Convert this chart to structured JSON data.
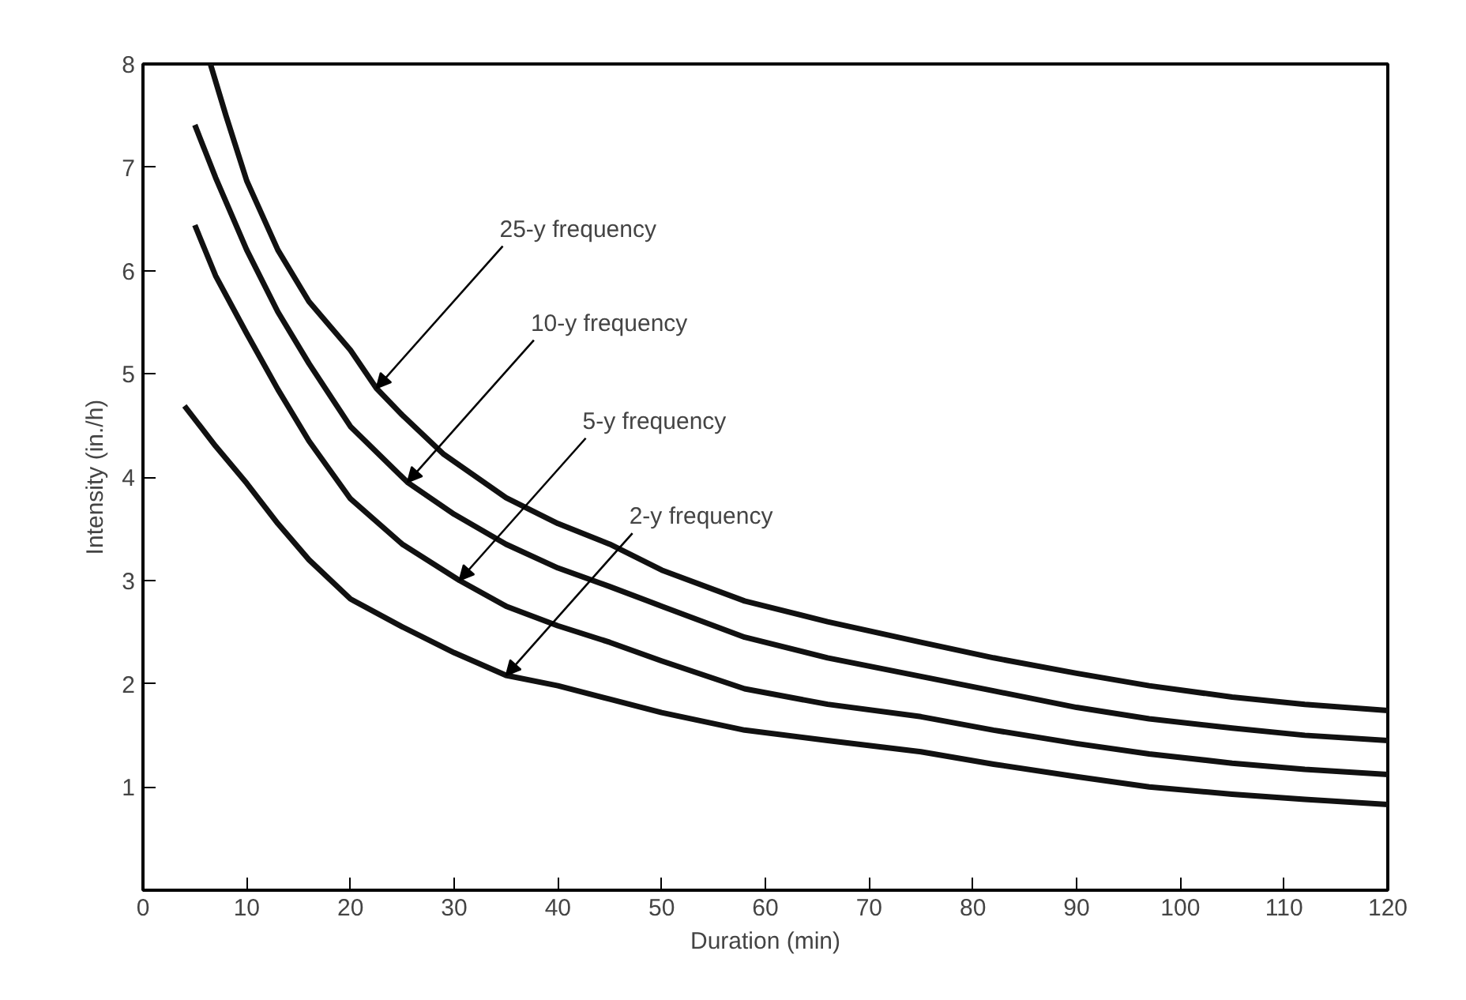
{
  "chart_data": {
    "type": "line",
    "xlabel": "Duration (min)",
    "ylabel": "Intensity (in./h)",
    "xlim": [
      0,
      120
    ],
    "ylim": [
      0,
      8
    ],
    "xticks": [
      0,
      10,
      20,
      30,
      40,
      50,
      60,
      70,
      80,
      90,
      100,
      110,
      120
    ],
    "yticks": [
      1,
      2,
      3,
      4,
      5,
      6,
      7,
      8
    ],
    "grid": false,
    "marker": "none",
    "line_style": "solid",
    "series": [
      {
        "color": "#111111",
        "x": [
          6.5,
          8,
          10,
          13,
          16,
          20,
          22.5,
          25,
          29,
          35,
          40,
          45,
          50,
          58,
          66,
          75,
          82,
          90,
          97,
          105,
          112,
          120
        ],
        "values": [
          8,
          7.5,
          6.87,
          6.2,
          5.7,
          5.23,
          4.86,
          4.6,
          4.22,
          3.8,
          3.55,
          3.35,
          3.1,
          2.8,
          2.6,
          2.4,
          2.25,
          2.1,
          1.98,
          1.87,
          1.8,
          1.74
        ]
      },
      {
        "color": "#111111",
        "x": [
          5,
          7,
          10,
          13,
          16,
          20,
          25.5,
          30,
          35,
          40,
          45,
          50,
          58,
          66,
          75,
          82,
          90,
          97,
          105,
          112,
          120
        ],
        "values": [
          7.41,
          6.9,
          6.2,
          5.6,
          5.1,
          4.49,
          3.95,
          3.64,
          3.35,
          3.12,
          2.94,
          2.75,
          2.45,
          2.25,
          2.07,
          1.93,
          1.77,
          1.66,
          1.57,
          1.5,
          1.45
        ]
      },
      {
        "color": "#111111",
        "x": [
          5,
          7,
          10,
          13,
          16,
          20,
          25,
          30.5,
          35,
          40,
          45,
          50,
          58,
          66,
          75,
          82,
          90,
          97,
          105,
          112,
          120
        ],
        "values": [
          6.44,
          5.95,
          5.39,
          4.85,
          4.35,
          3.79,
          3.35,
          3.0,
          2.75,
          2.56,
          2.4,
          2.22,
          1.95,
          1.8,
          1.68,
          1.55,
          1.42,
          1.32,
          1.23,
          1.17,
          1.12
        ]
      },
      {
        "color": "#111111",
        "x": [
          4,
          7,
          10,
          13,
          16,
          20,
          25,
          30,
          35,
          40,
          45,
          50,
          58,
          66,
          75,
          82,
          90,
          97,
          105,
          112,
          120
        ],
        "values": [
          4.69,
          4.3,
          3.94,
          3.55,
          3.2,
          2.82,
          2.55,
          2.3,
          2.08,
          1.98,
          1.85,
          1.72,
          1.55,
          1.45,
          1.34,
          1.22,
          1.1,
          1.0,
          0.93,
          0.88,
          0.83
        ]
      }
    ],
    "annotations": [
      {
        "text": "25-y frequency",
        "x": 22.5,
        "y": 4.86
      },
      {
        "text": "10-y frequency",
        "x": 25.5,
        "y": 3.95
      },
      {
        "text": "5-y frequency",
        "x": 30.5,
        "y": 3.0
      },
      {
        "text": "2-y frequency",
        "x": 35,
        "y": 2.08
      }
    ]
  }
}
